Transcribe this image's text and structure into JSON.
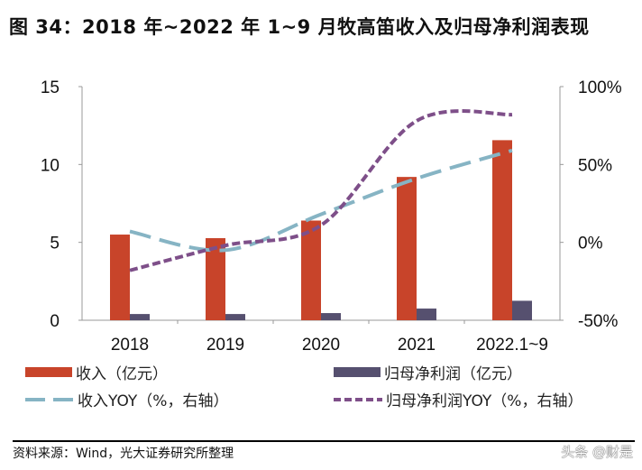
{
  "title": "图 34：2018 年~2022 年 1~9 月牧高笛收入及归母净利润表现",
  "source": "资料来源：Wind，光大证券研究所整理",
  "watermark": "头条 @财是",
  "colors": {
    "revenue": "#C8442A",
    "profit": "#56506F",
    "revenue_yoy": "#86B4C4",
    "profit_yoy": "#7E4F89"
  },
  "chart_data": {
    "type": "bar+line",
    "categories": [
      "2018",
      "2019",
      "2020",
      "2021",
      "2022.1~9"
    ],
    "left_axis": {
      "ylim": [
        0,
        15
      ],
      "ticks": [
        "0",
        "5",
        "10",
        "15"
      ]
    },
    "right_axis": {
      "ylim": [
        -50,
        100
      ],
      "ticks": [
        "-50%",
        "0%",
        "50%",
        "100%"
      ]
    },
    "grid": false,
    "legend_position": "bottom",
    "series": [
      {
        "name": "收入（亿元）",
        "type": "bar",
        "axis": "left",
        "values": [
          5.5,
          5.27,
          6.4,
          9.2,
          11.56
        ]
      },
      {
        "name": "归母净利润（亿元）",
        "type": "bar",
        "axis": "left",
        "values": [
          0.4,
          0.4,
          0.46,
          0.75,
          1.25
        ]
      },
      {
        "name": "收入YOY（%，右轴）",
        "type": "line",
        "style": "long-dash",
        "axis": "right",
        "values": [
          7,
          -5,
          18,
          41,
          59
        ]
      },
      {
        "name": "归母净利润YOY（%，右轴）",
        "type": "line",
        "style": "short-dash",
        "axis": "right",
        "values": [
          -18,
          -2,
          11,
          78,
          82
        ]
      }
    ]
  }
}
